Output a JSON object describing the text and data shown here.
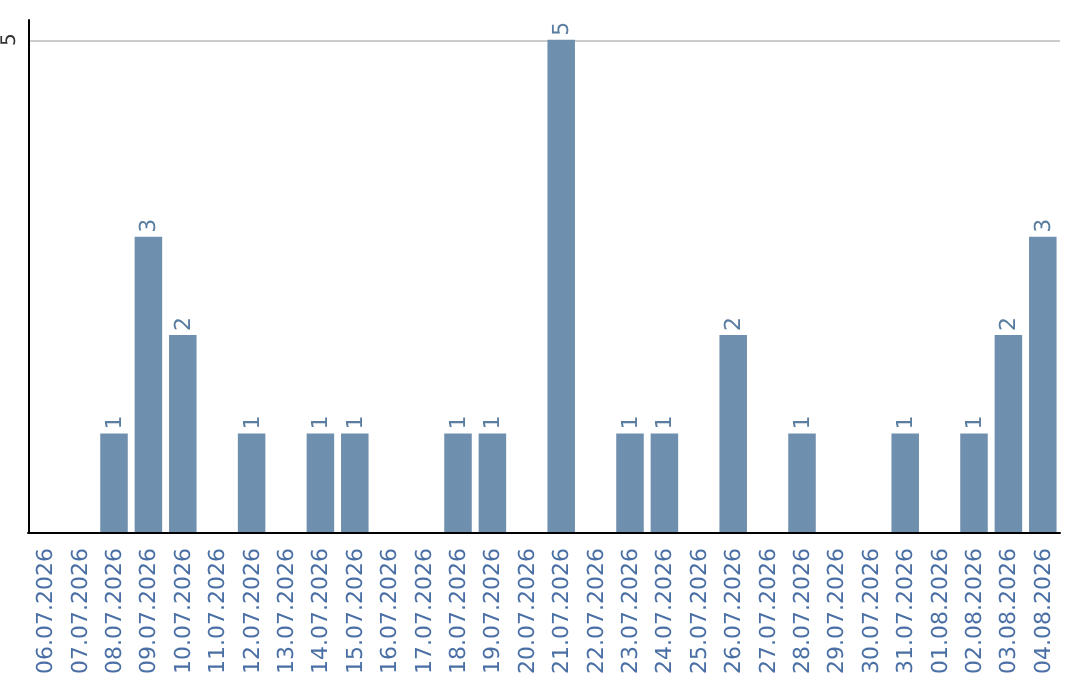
{
  "chart_data": {
    "type": "bar",
    "categories": [
      "06.07.2026",
      "07.07.2026",
      "08.07.2026",
      "09.07.2026",
      "10.07.2026",
      "11.07.2026",
      "12.07.2026",
      "13.07.2026",
      "14.07.2026",
      "15.07.2026",
      "16.07.2026",
      "17.07.2026",
      "18.07.2026",
      "19.07.2026",
      "20.07.2026",
      "21.07.2026",
      "22.07.2026",
      "23.07.2026",
      "24.07.2026",
      "25.07.2026",
      "26.07.2026",
      "27.07.2026",
      "28.07.2026",
      "29.07.2026",
      "30.07.2026",
      "31.07.2026",
      "01.08.2026",
      "02.08.2026",
      "03.08.2026",
      "04.08.2026"
    ],
    "values": [
      0,
      0,
      1,
      3,
      2,
      0,
      1,
      0,
      1,
      1,
      0,
      0,
      1,
      1,
      0,
      5,
      0,
      1,
      1,
      0,
      2,
      0,
      1,
      0,
      0,
      1,
      0,
      1,
      2,
      3
    ],
    "value_labels": [
      null,
      null,
      "1",
      "3",
      "2",
      null,
      "1",
      null,
      "1",
      "1",
      null,
      null,
      "1",
      "1",
      null,
      "5",
      null,
      "1",
      "1",
      null,
      "2",
      null,
      "1",
      null,
      null,
      "1",
      null,
      "1",
      "2",
      "3"
    ],
    "color": "#6f8fae",
    "ylim": [
      0,
      5.2
    ],
    "yticks": [
      {
        "value": 0,
        "label": null
      },
      5
    ],
    "grid": "y"
  }
}
